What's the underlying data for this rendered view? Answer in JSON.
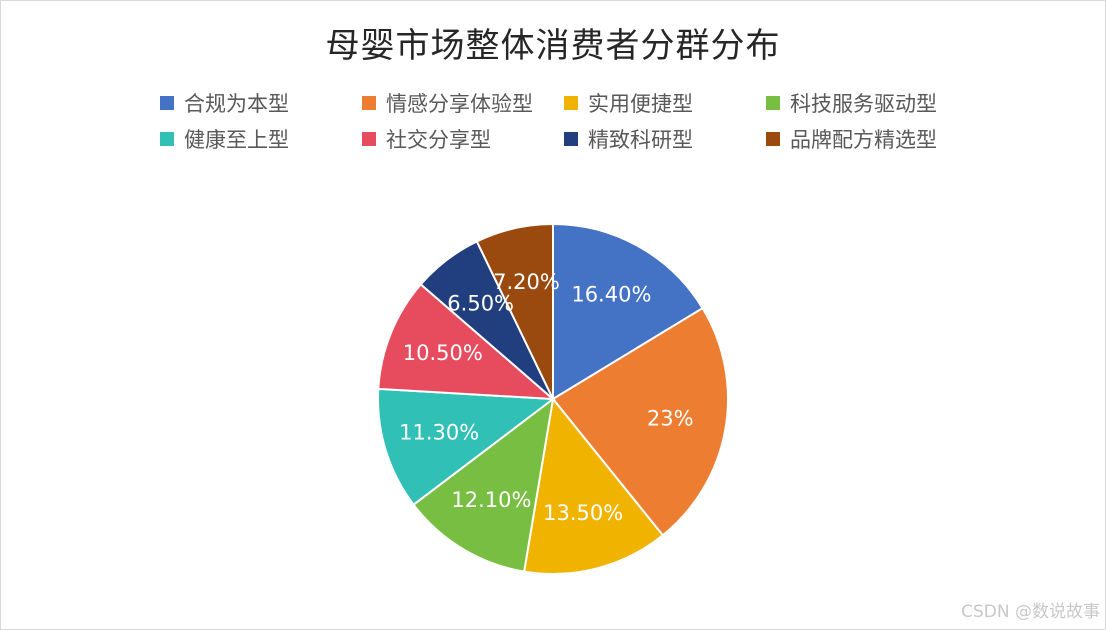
{
  "chart_data": {
    "type": "pie",
    "title": "母婴市场整体消费者分群分布",
    "legend_position": "top",
    "slices": [
      {
        "name": "合规为本型",
        "value": 16.4,
        "label": "16.40%",
        "color": "#4472C4"
      },
      {
        "name": "情感分享体验型",
        "value": 23,
        "label": "23%",
        "color": "#ED7D31"
      },
      {
        "name": "实用便捷型",
        "value": 13.5,
        "label": "13.50%",
        "color": "#F0B400"
      },
      {
        "name": "科技服务驱动型",
        "value": 12.1,
        "label": "12.10%",
        "color": "#78BE42"
      },
      {
        "name": "健康至上型",
        "value": 11.3,
        "label": "11.30%",
        "color": "#31C0B5"
      },
      {
        "name": "社交分享型",
        "value": 10.5,
        "label": "10.50%",
        "color": "#E64C5E"
      },
      {
        "name": "精致科研型",
        "value": 6.5,
        "label": "6.50%",
        "color": "#213F7E"
      },
      {
        "name": "品牌配方精选型",
        "value": 7.2,
        "label": "7.20%",
        "color": "#9A4A0E"
      }
    ]
  },
  "watermark": "CSDN @数说故事"
}
